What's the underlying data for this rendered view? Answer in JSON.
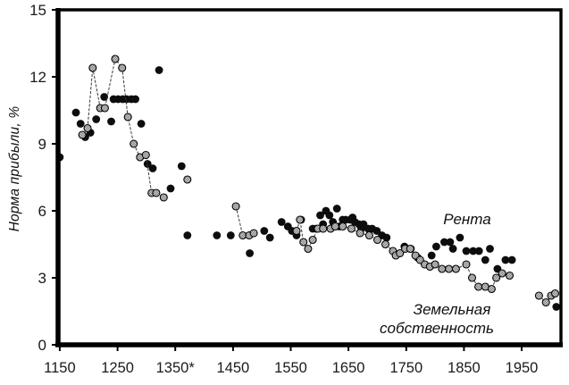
{
  "chart_data": {
    "type": "scatter",
    "title": "",
    "xlabel": "",
    "ylabel": "Норма прибыли, %",
    "xlim": [
      1147,
      2018
    ],
    "ylim": [
      0,
      15
    ],
    "grid": false,
    "x_ticks": [
      1150,
      1250,
      1350,
      1450,
      1550,
      1650,
      1750,
      1850,
      1950
    ],
    "x_ticklabels": [
      "1150",
      "1250",
      "1350*",
      "1450",
      "1550",
      "1650",
      "1750",
      "1850",
      "1950"
    ],
    "y_ticks": [
      0,
      3,
      6,
      9,
      12,
      15
    ],
    "y_ticklabels": [
      "0",
      "3",
      "6",
      "9",
      "12",
      "15"
    ],
    "legend_position": "inline-annotations",
    "series": [
      {
        "name": "Рента",
        "type": "scatter",
        "marker": "filled-circle",
        "color": "#0d0d0d",
        "points": [
          [
            1150,
            8.4
          ],
          [
            1178,
            10.4
          ],
          [
            1186,
            9.9
          ],
          [
            1194,
            9.3
          ],
          [
            1203,
            9.5
          ],
          [
            1213,
            10.1
          ],
          [
            1227,
            11.1
          ],
          [
            1239,
            10.0
          ],
          [
            1243,
            11.0
          ],
          [
            1251,
            11.0
          ],
          [
            1259,
            11.0
          ],
          [
            1266,
            11.0
          ],
          [
            1274,
            11.0
          ],
          [
            1281,
            11.0
          ],
          [
            1291,
            9.9
          ],
          [
            1302,
            8.1
          ],
          [
            1311,
            7.9
          ],
          [
            1322,
            12.3
          ],
          [
            1342,
            7.0
          ],
          [
            1361,
            8.0
          ],
          [
            1371,
            4.9
          ],
          [
            1422,
            4.9
          ],
          [
            1446,
            4.9
          ],
          [
            1479,
            4.1
          ],
          [
            1504,
            5.1
          ],
          [
            1514,
            4.8
          ],
          [
            1534,
            5.5
          ],
          [
            1545,
            5.3
          ],
          [
            1552,
            5.1
          ],
          [
            1560,
            4.9
          ],
          [
            1568,
            5.6
          ],
          [
            1588,
            5.2
          ],
          [
            1594,
            5.2
          ],
          [
            1601,
            5.8
          ],
          [
            1606,
            5.4
          ],
          [
            1611,
            6.0
          ],
          [
            1617,
            5.8
          ],
          [
            1623,
            5.5
          ],
          [
            1630,
            6.1
          ],
          [
            1634,
            5.3
          ],
          [
            1640,
            5.6
          ],
          [
            1645,
            5.6
          ],
          [
            1653,
            5.6
          ],
          [
            1657,
            5.7
          ],
          [
            1661,
            5.5
          ],
          [
            1668,
            5.4
          ],
          [
            1672,
            5.2
          ],
          [
            1676,
            5.4
          ],
          [
            1684,
            5.2
          ],
          [
            1691,
            5.2
          ],
          [
            1699,
            5.1
          ],
          [
            1708,
            4.9
          ],
          [
            1716,
            4.8
          ],
          [
            1747,
            4.4
          ],
          [
            1758,
            4.3
          ],
          [
            1770,
            3.9
          ],
          [
            1794,
            4.0
          ],
          [
            1802,
            4.4
          ],
          [
            1816,
            4.6
          ],
          [
            1826,
            4.6
          ],
          [
            1831,
            4.3
          ],
          [
            1843,
            4.8
          ],
          [
            1854,
            4.2
          ],
          [
            1866,
            4.2
          ],
          [
            1876,
            4.2
          ],
          [
            1887,
            3.8
          ],
          [
            1895,
            4.3
          ],
          [
            1908,
            3.4
          ],
          [
            1922,
            3.8
          ],
          [
            1933,
            3.8
          ],
          [
            2010,
            1.7
          ]
        ]
      },
      {
        "name": "Земельная собственность",
        "type": "line-with-markers",
        "marker": "hatched-circle",
        "marker_fill": "#dedede",
        "hatch_color": "#6f6f6f",
        "outline_color": "#000000",
        "line_color": "#3a3a3a",
        "groups": [
          [
            [
              1189,
              9.4
            ],
            [
              1198,
              9.7
            ],
            [
              1207,
              12.4
            ],
            [
              1220,
              10.6
            ],
            [
              1228,
              10.6
            ],
            [
              1246,
              12.8
            ],
            [
              1258,
              12.4
            ],
            [
              1268,
              10.2
            ],
            [
              1278,
              9.0
            ],
            [
              1289,
              8.4
            ],
            [
              1299,
              8.5
            ],
            [
              1309,
              6.8
            ],
            [
              1317,
              6.8
            ],
            [
              1330,
              6.6
            ]
          ],
          [
            [
              1371,
              7.4
            ]
          ],
          [
            [
              1455,
              6.2
            ],
            [
              1467,
              4.9
            ],
            [
              1478,
              4.9
            ],
            [
              1486,
              5.0
            ]
          ],
          [
            [
              1560,
              5.1
            ],
            [
              1566,
              5.6
            ],
            [
              1572,
              4.6
            ],
            [
              1580,
              4.3
            ],
            [
              1588,
              4.7
            ],
            [
              1597,
              5.2
            ],
            [
              1606,
              5.2
            ],
            [
              1619,
              5.2
            ],
            [
              1627,
              5.3
            ],
            [
              1640,
              5.3
            ],
            [
              1655,
              5.2
            ],
            [
              1670,
              5.0
            ],
            [
              1686,
              4.9
            ],
            [
              1700,
              4.7
            ],
            [
              1714,
              4.5
            ],
            [
              1727,
              4.2
            ],
            [
              1732,
              4.0
            ],
            [
              1739,
              4.1
            ],
            [
              1748,
              4.3
            ],
            [
              1757,
              4.3
            ],
            [
              1766,
              4.0
            ],
            [
              1774,
              3.8
            ],
            [
              1782,
              3.6
            ],
            [
              1791,
              3.5
            ],
            [
              1800,
              3.6
            ],
            [
              1812,
              3.4
            ],
            [
              1824,
              3.4
            ],
            [
              1836,
              3.4
            ],
            [
              1854,
              3.6
            ],
            [
              1864,
              3.0
            ],
            [
              1875,
              2.6
            ],
            [
              1887,
              2.6
            ],
            [
              1898,
              2.5
            ],
            [
              1906,
              3.0
            ],
            [
              1916,
              3.2
            ],
            [
              1929,
              3.1
            ]
          ],
          [
            [
              1980,
              2.2
            ],
            [
              1992,
              1.9
            ],
            [
              2001,
              2.2
            ],
            [
              2008,
              2.3
            ]
          ]
        ]
      }
    ],
    "annotations": [
      {
        "text": "Рента"
      },
      {
        "text": "Земельная"
      },
      {
        "text": "собственность"
      }
    ],
    "colors": {
      "axis": "#000000",
      "tick_label": "#1a1a1a",
      "background": "#ffffff"
    }
  }
}
